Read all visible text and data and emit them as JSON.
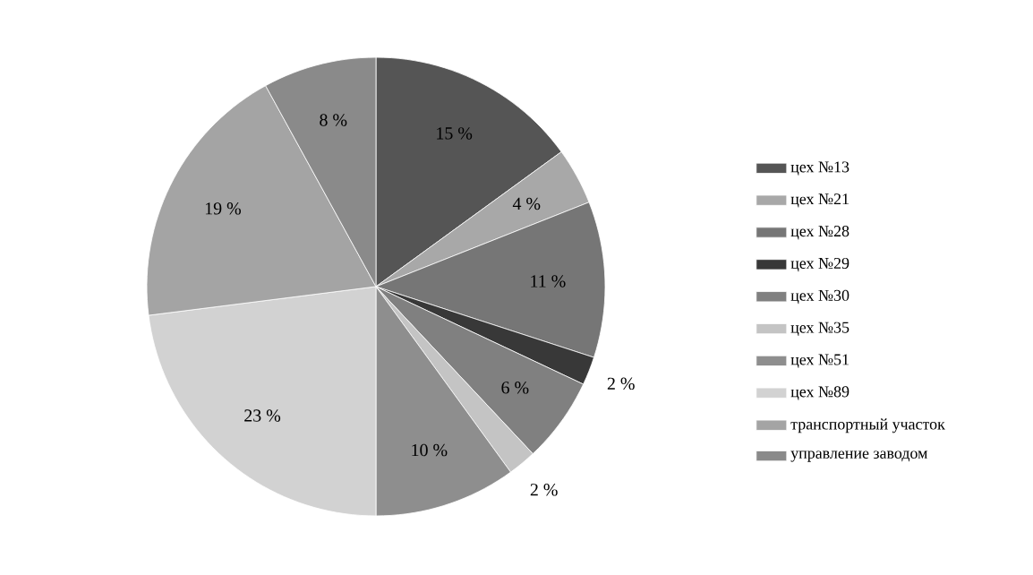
{
  "chart_data": {
    "type": "pie",
    "categories": [
      "цех №13",
      "цех №21",
      "цех №28",
      "цех №29",
      "цех №30",
      "цех №35",
      "цех №51",
      "цех №89",
      "транспортный участок",
      "управление заводом"
    ],
    "values": [
      15,
      4,
      11,
      2,
      6,
      2,
      10,
      23,
      19,
      8
    ],
    "value_labels": [
      "15 %",
      "4 %",
      "11 %",
      "2 %",
      "6 %",
      "2 %",
      "10 %",
      "23 %",
      "19 %",
      "8 %"
    ],
    "colors": [
      "#555555",
      "#a8a8a8",
      "#767676",
      "#383838",
      "#808080",
      "#c4c4c4",
      "#8e8e8e",
      "#d2d2d2",
      "#a4a4a4",
      "#8a8a8a"
    ],
    "legend": "right"
  }
}
